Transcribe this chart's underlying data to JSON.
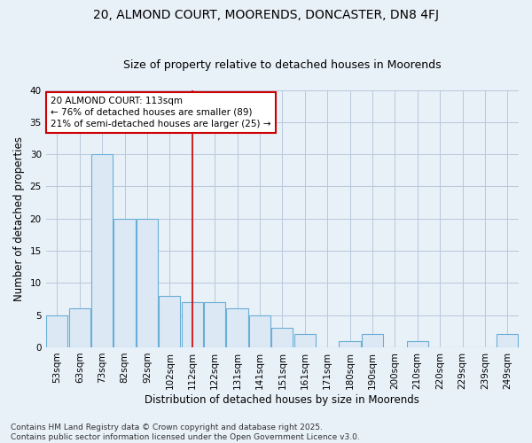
{
  "title": "20, ALMOND COURT, MOORENDS, DONCASTER, DN8 4FJ",
  "subtitle": "Size of property relative to detached houses in Moorends",
  "xlabel": "Distribution of detached houses by size in Moorends",
  "ylabel": "Number of detached properties",
  "categories": [
    "53sqm",
    "63sqm",
    "73sqm",
    "82sqm",
    "92sqm",
    "102sqm",
    "112sqm",
    "122sqm",
    "131sqm",
    "141sqm",
    "151sqm",
    "161sqm",
    "171sqm",
    "180sqm",
    "190sqm",
    "200sqm",
    "210sqm",
    "220sqm",
    "229sqm",
    "239sqm",
    "249sqm"
  ],
  "values": [
    5,
    6,
    30,
    20,
    20,
    8,
    7,
    7,
    6,
    5,
    3,
    2,
    0,
    1,
    2,
    0,
    1,
    0,
    0,
    0,
    2
  ],
  "bar_color": "#dce9f5",
  "bar_edge_color": "#6aaed6",
  "grid_color": "#b8c8dc",
  "background_color": "#e8f0f8",
  "vline_x_index": 6,
  "vline_color": "#cc0000",
  "annotation_line1": "20 ALMOND COURT: 113sqm",
  "annotation_line2": "← 76% of detached houses are smaller (89)",
  "annotation_line3": "21% of semi-detached houses are larger (25) →",
  "annotation_box_color": "#ffffff",
  "annotation_box_edge_color": "#cc0000",
  "ylim": [
    0,
    40
  ],
  "yticks": [
    0,
    5,
    10,
    15,
    20,
    25,
    30,
    35,
    40
  ],
  "footnote": "Contains HM Land Registry data © Crown copyright and database right 2025.\nContains public sector information licensed under the Open Government Licence v3.0.",
  "title_fontsize": 10,
  "subtitle_fontsize": 9,
  "axis_label_fontsize": 8.5,
  "tick_fontsize": 7.5,
  "annotation_fontsize": 7.5,
  "footnote_fontsize": 6.5
}
